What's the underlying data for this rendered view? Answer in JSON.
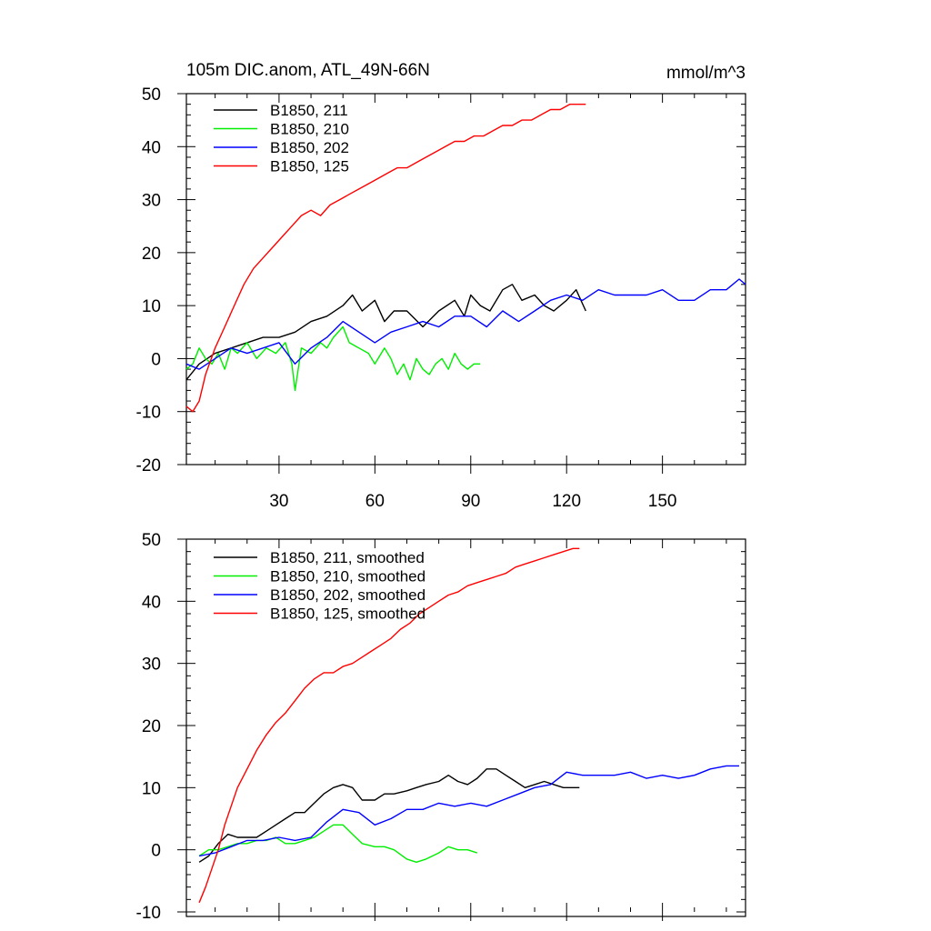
{
  "figure": {
    "title": "105m DIC.anom, ATL_49N-66N",
    "units": "mmol/m^3"
  },
  "chart_data": [
    {
      "type": "line",
      "xlim": [
        1,
        176
      ],
      "ylim": [
        -20,
        50
      ],
      "xticks": [
        30,
        60,
        90,
        120,
        150
      ],
      "yticks": [
        -20,
        -10,
        0,
        10,
        20,
        30,
        40,
        50
      ],
      "ytick_labels": [
        "-20",
        "-10",
        "0",
        "10",
        "20",
        "30",
        "40",
        "50"
      ],
      "xtick_labels": [
        "30",
        "60",
        "90",
        "120",
        "150"
      ],
      "legend_position": "top-left",
      "series": [
        {
          "name": "B1850, 211",
          "color": "#000000",
          "x": [
            1,
            5,
            10,
            15,
            20,
            25,
            30,
            35,
            40,
            45,
            50,
            53,
            56,
            60,
            63,
            66,
            70,
            75,
            80,
            85,
            88,
            90,
            93,
            96,
            100,
            103,
            106,
            110,
            113,
            116,
            120,
            123,
            126
          ],
          "y": [
            -4,
            -1,
            1,
            2,
            3,
            4,
            4,
            5,
            7,
            8,
            10,
            12,
            9,
            11,
            7,
            9,
            9,
            6,
            9,
            11,
            8,
            12,
            10,
            9,
            13,
            14,
            11,
            12,
            10,
            9,
            11,
            13,
            9
          ]
        },
        {
          "name": "B1850, 210",
          "color": "#00ee00",
          "x": [
            1,
            3,
            5,
            7,
            9,
            11,
            13,
            15,
            17,
            20,
            23,
            26,
            29,
            32,
            34,
            35,
            37,
            40,
            43,
            45,
            47,
            50,
            52,
            55,
            58,
            60,
            63,
            65,
            67,
            69,
            71,
            73,
            75,
            77,
            79,
            81,
            83,
            85,
            87,
            89,
            91,
            93
          ],
          "y": [
            -2,
            -1,
            2,
            0,
            -1,
            1,
            -2,
            2,
            1,
            3,
            0,
            2,
            1,
            3,
            -1,
            -6,
            2,
            1,
            3,
            2,
            4,
            6,
            3,
            2,
            1,
            -1,
            2,
            0,
            -3,
            -1,
            -4,
            0,
            -2,
            -3,
            -1,
            0,
            -2,
            1,
            -1,
            -2,
            -1,
            -1
          ]
        },
        {
          "name": "B1850, 202",
          "color": "#0000ff",
          "x": [
            1,
            5,
            10,
            15,
            20,
            25,
            30,
            35,
            40,
            45,
            50,
            55,
            60,
            65,
            70,
            75,
            80,
            85,
            90,
            95,
            100,
            105,
            110,
            115,
            120,
            125,
            130,
            135,
            140,
            145,
            150,
            155,
            160,
            165,
            170,
            174,
            176
          ],
          "y": [
            -1,
            -2,
            0,
            2,
            1,
            2,
            3,
            -1,
            2,
            4,
            7,
            5,
            3,
            5,
            6,
            7,
            6,
            8,
            8,
            6,
            9,
            7,
            9,
            11,
            12,
            11,
            13,
            12,
            12,
            12,
            13,
            11,
            11,
            13,
            13,
            15,
            14
          ]
        },
        {
          "name": "B1850, 125",
          "color": "#ff0000",
          "x": [
            1,
            3,
            5,
            7,
            10,
            13,
            16,
            19,
            22,
            25,
            28,
            31,
            34,
            37,
            40,
            43,
            46,
            49,
            52,
            55,
            58,
            61,
            64,
            67,
            70,
            73,
            76,
            79,
            82,
            85,
            88,
            91,
            94,
            97,
            100,
            103,
            106,
            109,
            112,
            115,
            118,
            121,
            124,
            126
          ],
          "y": [
            -9,
            -10,
            -8,
            -3,
            2,
            6,
            10,
            14,
            17,
            19,
            21,
            23,
            25,
            27,
            28,
            27,
            29,
            30,
            31,
            32,
            33,
            34,
            35,
            36,
            36,
            37,
            38,
            39,
            40,
            41,
            41,
            42,
            42,
            43,
            44,
            44,
            45,
            45,
            46,
            47,
            47,
            48,
            48,
            48
          ]
        }
      ]
    },
    {
      "type": "line",
      "xlim": [
        1,
        176
      ],
      "ylim": [
        -10,
        50
      ],
      "xticks": [
        30,
        60,
        90,
        120,
        150
      ],
      "yticks": [
        -10,
        0,
        10,
        20,
        30,
        40,
        50
      ],
      "ytick_labels": [
        "-10",
        "0",
        "10",
        "20",
        "30",
        "40",
        "50"
      ],
      "legend_position": "top-left",
      "series": [
        {
          "name": "B1850, 211, smoothed",
          "color": "#000000",
          "x": [
            5,
            8,
            11,
            14,
            17,
            20,
            23,
            26,
            29,
            32,
            35,
            38,
            41,
            44,
            47,
            50,
            53,
            56,
            60,
            63,
            66,
            70,
            73,
            76,
            80,
            83,
            86,
            89,
            92,
            95,
            98,
            101,
            104,
            107,
            110,
            113,
            116,
            119,
            122,
            124
          ],
          "y": [
            -2,
            -1,
            1,
            2.5,
            2,
            2,
            2,
            3,
            4,
            5,
            6,
            6,
            7.5,
            9,
            10,
            10.5,
            10,
            8,
            8,
            9,
            9,
            9.5,
            10,
            10.5,
            11,
            12,
            11,
            10.5,
            11.5,
            13,
            13,
            12,
            11,
            10,
            10.5,
            11,
            10.5,
            10,
            10,
            10
          ]
        },
        {
          "name": "B1850, 210, smoothed",
          "color": "#00ee00",
          "x": [
            5,
            8,
            11,
            14,
            17,
            20,
            23,
            26,
            29,
            32,
            35,
            38,
            41,
            44,
            47,
            50,
            53,
            56,
            60,
            63,
            66,
            70,
            73,
            76,
            80,
            83,
            86,
            89,
            92
          ],
          "y": [
            -1,
            0,
            0,
            0.5,
            1,
            1,
            1.5,
            1.5,
            2,
            1,
            1,
            1.5,
            2,
            3,
            4,
            4,
            2.5,
            1,
            0.5,
            0.5,
            0,
            -1.5,
            -2,
            -1.5,
            -0.5,
            0.5,
            0,
            0,
            -0.5
          ]
        },
        {
          "name": "B1850, 202, smoothed",
          "color": "#0000ff",
          "x": [
            5,
            10,
            15,
            20,
            25,
            30,
            35,
            40,
            45,
            50,
            55,
            60,
            65,
            70,
            75,
            80,
            85,
            90,
            95,
            100,
            105,
            110,
            115,
            120,
            125,
            130,
            135,
            140,
            145,
            150,
            155,
            160,
            165,
            170,
            174
          ],
          "y": [
            -1,
            -0.5,
            0.5,
            1.5,
            1.5,
            2,
            1.5,
            2,
            4.5,
            6.5,
            6,
            4,
            5,
            6.5,
            6.5,
            7.5,
            7,
            7.5,
            7,
            8,
            9,
            10,
            10.5,
            12.5,
            12,
            12,
            12,
            12.5,
            11.5,
            12,
            11.5,
            12,
            13,
            13.5,
            13.5
          ]
        },
        {
          "name": "B1850, 125, smoothed",
          "color": "#ff0000",
          "x": [
            5,
            7,
            9,
            11,
            13,
            15,
            17,
            20,
            23,
            26,
            29,
            32,
            35,
            38,
            41,
            44,
            47,
            50,
            53,
            56,
            59,
            62,
            65,
            68,
            71,
            74,
            77,
            80,
            83,
            86,
            89,
            92,
            95,
            98,
            101,
            104,
            107,
            110,
            113,
            116,
            119,
            122,
            124
          ],
          "y": [
            -8.5,
            -6,
            -3,
            0,
            4,
            7,
            10,
            13,
            16,
            18.5,
            20.5,
            22,
            24,
            26,
            27.5,
            28.5,
            28.5,
            29.5,
            30,
            31,
            32,
            33,
            34,
            35.5,
            36.5,
            38,
            39,
            40,
            41,
            41.5,
            42.5,
            43,
            43.5,
            44,
            44.5,
            45.5,
            46,
            46.5,
            47,
            47.5,
            48,
            48.5,
            48.5
          ]
        }
      ]
    }
  ]
}
